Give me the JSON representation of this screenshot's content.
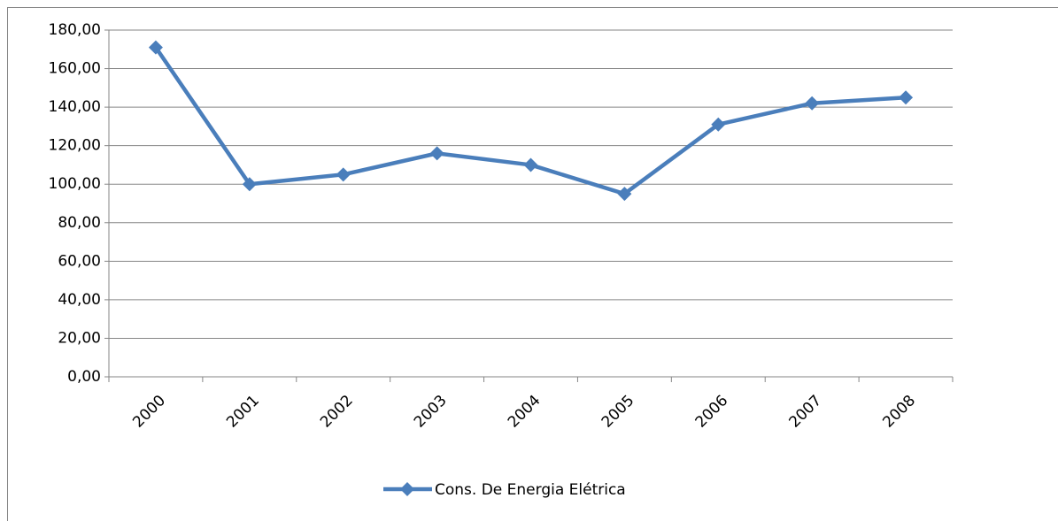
{
  "chart_data": {
    "type": "line",
    "categories": [
      "2000",
      "2001",
      "2002",
      "2003",
      "2004",
      "2005",
      "2006",
      "2007",
      "2008"
    ],
    "series": [
      {
        "name": "Cons. De Energia Elétrica",
        "color": "#4a7ebb",
        "values": [
          171,
          100,
          105,
          116,
          110,
          95,
          131,
          142,
          145
        ]
      }
    ],
    "ylim": [
      0,
      180
    ],
    "yticks": [
      {
        "value": 0,
        "label": "0,00"
      },
      {
        "value": 20,
        "label": "20,00"
      },
      {
        "value": 40,
        "label": "40,00"
      },
      {
        "value": 60,
        "label": "60,00"
      },
      {
        "value": 80,
        "label": "80,00"
      },
      {
        "value": 100,
        "label": "100,00"
      },
      {
        "value": 120,
        "label": "120,00"
      },
      {
        "value": 140,
        "label": "140,00"
      },
      {
        "value": 160,
        "label": "160,00"
      },
      {
        "value": 180,
        "label": "180,00"
      }
    ],
    "grid": true,
    "legend": "bottom"
  }
}
